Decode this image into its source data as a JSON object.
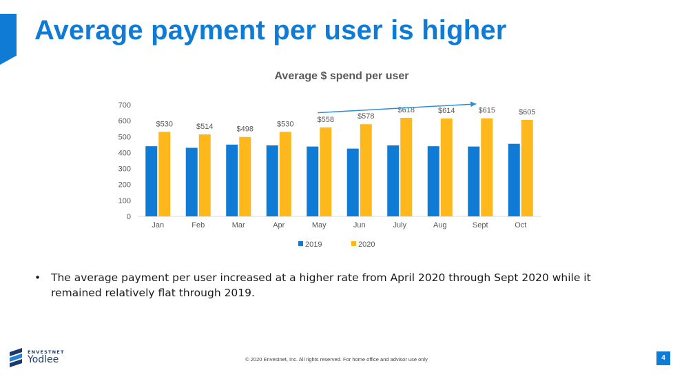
{
  "slide": {
    "title": "Average payment per user is higher",
    "bullets": [
      "The average payment per user increased at a higher rate from April 2020 through Sept 2020 while it remained relatively flat through 2019."
    ],
    "footer": "© 2020 Envestnet, Inc. All rights reserved. For home office and advisor use only",
    "page_number": "4",
    "logo": {
      "brand": "ENVESTNET",
      "product": "Yodlee"
    },
    "accent_color": "#0f7bd4"
  },
  "chart_data": {
    "type": "bar",
    "title": "Average $ spend per user",
    "xlabel": "",
    "ylabel": "",
    "ylim": [
      0,
      700
    ],
    "yticks": [
      0,
      100,
      200,
      300,
      400,
      500,
      600,
      700
    ],
    "categories": [
      "Jan",
      "Feb",
      "Mar",
      "Apr",
      "May",
      "Jun",
      "July",
      "Aug",
      "Sept",
      "Oct"
    ],
    "series": [
      {
        "name": "2019",
        "color": "#0f7bd4",
        "values": [
          440,
          430,
          450,
          445,
          438,
          425,
          445,
          440,
          438,
          455
        ],
        "labels": []
      },
      {
        "name": "2020",
        "color": "#ffb81c",
        "values": [
          530,
          514,
          498,
          530,
          558,
          578,
          618,
          614,
          615,
          605
        ],
        "labels": [
          "$530",
          "$514",
          "$498",
          "$530",
          "$558",
          "$578",
          "$618",
          "$614",
          "$615",
          "$605"
        ]
      }
    ],
    "legend": "bottom",
    "grid": false,
    "annotation": {
      "type": "trend-arrow",
      "from_category": "May",
      "to_category": "Sept",
      "from_value": 650,
      "to_value": 705,
      "color": "#2a8fd8"
    }
  }
}
